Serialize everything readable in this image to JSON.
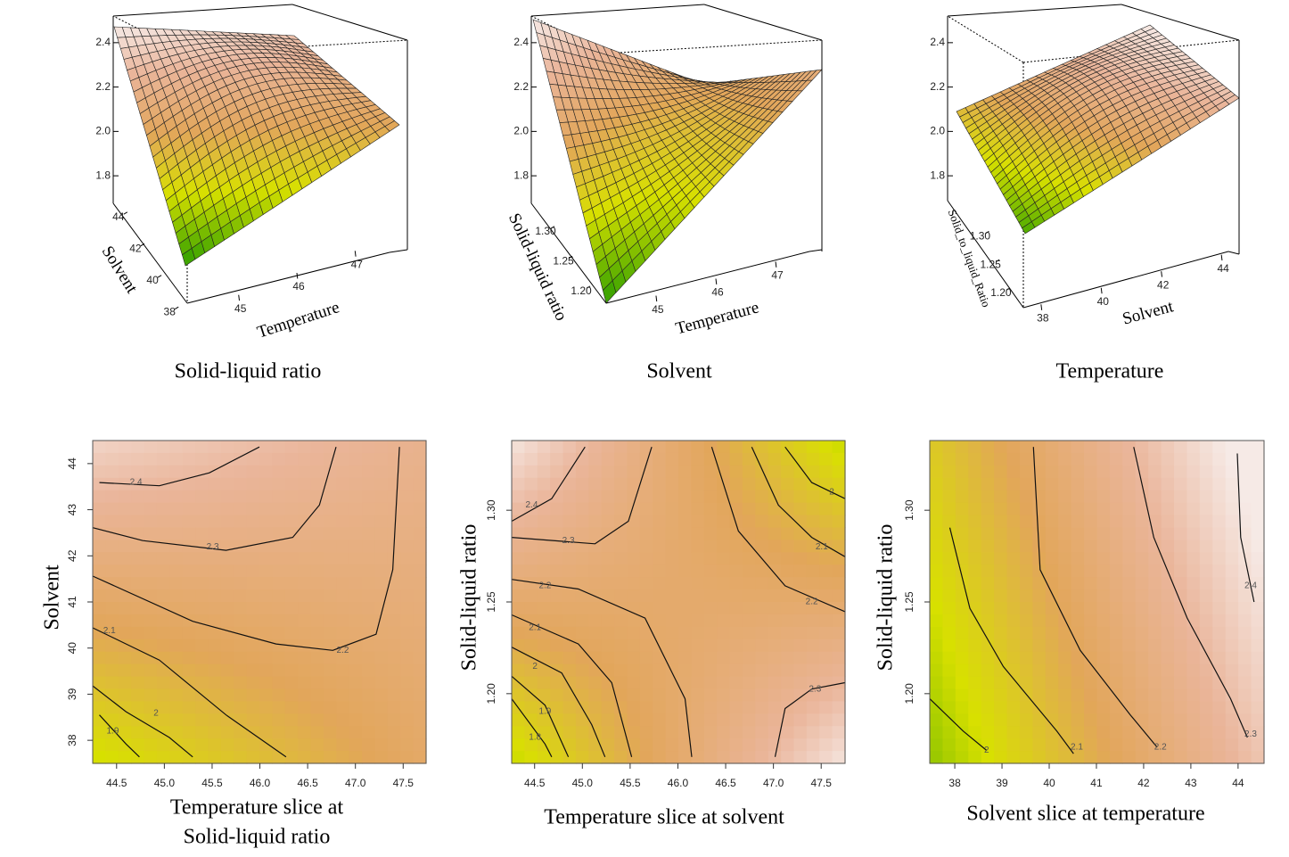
{
  "chart_data": [
    {
      "type": "surface3d",
      "caption": "Solid-liquid ratio",
      "xlabel": "Temperature",
      "ylabel": "Solvent",
      "xlim": [
        44.3,
        47.7
      ],
      "xticks": [
        45,
        46,
        47
      ],
      "ylim": [
        37.5,
        44.5
      ],
      "yticks": [
        38,
        40,
        42,
        44
      ],
      "zlim": [
        1.7,
        2.52
      ],
      "zticks": [
        1.8,
        {
          "value": 2,
          "label": "2.0"
        },
        2.2,
        2.4
      ]
    },
    {
      "type": "surface3d",
      "caption": "Solvent",
      "xlabel": "Temperature",
      "ylabel": "Solid-liquid ratio",
      "xlim": [
        44.3,
        47.7
      ],
      "xticks": [
        45,
        46,
        47
      ],
      "ylim": [
        1.17,
        1.34
      ],
      "yticks": [
        {
          "value": 1.2,
          "label": "1.20"
        },
        1.25,
        {
          "value": 1.3,
          "label": "1.30"
        }
      ],
      "zlim": [
        1.7,
        2.52
      ],
      "zticks": [
        1.8,
        {
          "value": 2,
          "label": "2.0"
        },
        2.2,
        2.4
      ]
    },
    {
      "type": "surface3d",
      "caption": "Temperature",
      "xlabel": "Solvent",
      "ylabel": "Solid_to_liquid_Ratio",
      "xlim": [
        37.5,
        44.5
      ],
      "xticks": [
        38,
        40,
        42,
        44
      ],
      "ylim": [
        1.17,
        1.34
      ],
      "yticks": [
        {
          "value": 1.2,
          "label": "1.20"
        },
        1.25,
        {
          "value": 1.3,
          "label": "1.30"
        }
      ],
      "zlim": [
        1.7,
        2.52
      ],
      "zticks": [
        1.8,
        {
          "value": 2,
          "label": "2.0"
        },
        2.2,
        2.4
      ]
    },
    {
      "type": "contour",
      "xlabel": [
        "Temperature slice at",
        "Solid-liquid ratio"
      ],
      "ylabel": "Solvent",
      "xlim": [
        44.25,
        47.74
      ],
      "xticks": [
        44.5,
        {
          "value": 45,
          "label": "45.0"
        },
        45.5,
        {
          "value": 46,
          "label": "46.0"
        },
        46.5,
        {
          "value": 47,
          "label": "47.0"
        },
        47.5
      ],
      "ylim": [
        37.5,
        44.5
      ],
      "yticks": [
        38,
        39,
        40,
        41,
        42,
        43,
        44
      ],
      "contour_levels": [
        2.4,
        2.3,
        2.2,
        2.1,
        2,
        1.9
      ]
    },
    {
      "type": "contour",
      "xlabel": [
        "Temperature slice at solvent"
      ],
      "ylabel": "Solid-liquid ratio",
      "xlim": [
        44.26,
        47.75
      ],
      "xticks": [
        44.5,
        {
          "value": 45,
          "label": "45.0"
        },
        45.5,
        {
          "value": 46,
          "label": "46.0"
        },
        46.5,
        {
          "value": 47,
          "label": "47.0"
        },
        47.5
      ],
      "ylim": [
        1.162,
        1.338
      ],
      "yticks": [
        {
          "value": 1.2,
          "label": "1.20"
        },
        1.25,
        {
          "value": 1.3,
          "label": "1.30"
        }
      ],
      "contour_levels": [
        2.4,
        2.3,
        2.2,
        2.1,
        2,
        1.9,
        1.8,
        2.2,
        2.1,
        2,
        2.3
      ]
    },
    {
      "type": "contour",
      "xlabel": [
        "Solvent slice at temperature"
      ],
      "ylabel": "Solid-liquid ratio",
      "xlim": [
        37.47,
        44.55
      ],
      "xticks": [
        38,
        39,
        40,
        41,
        42,
        43,
        44
      ],
      "ylim": [
        1.162,
        1.338
      ],
      "yticks": [
        {
          "value": 1.2,
          "label": "1.20"
        },
        1.25,
        {
          "value": 1.3,
          "label": "1.30"
        }
      ],
      "contour_levels": [
        2,
        2.1,
        2.2,
        2.3,
        2.4
      ]
    }
  ]
}
